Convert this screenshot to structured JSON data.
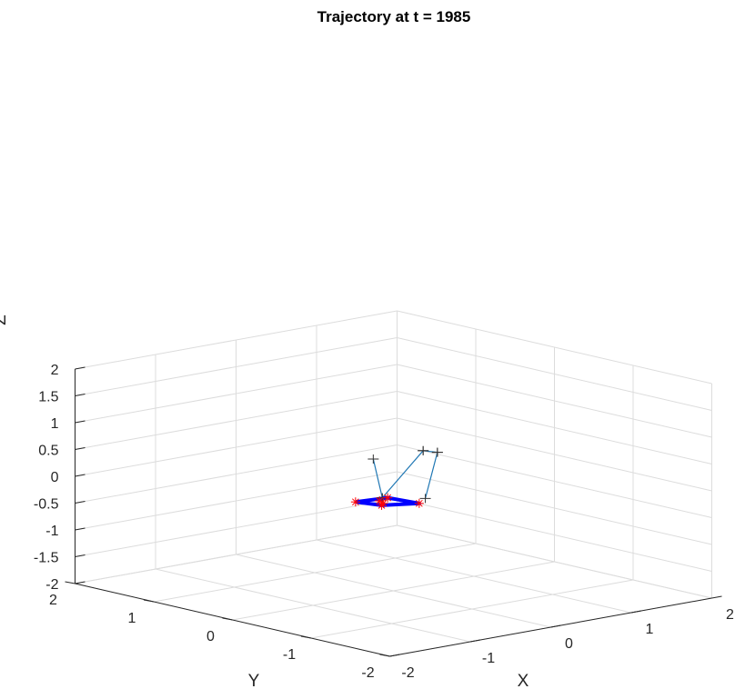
{
  "chart_data": {
    "type": "line",
    "projection": "3d",
    "title": "Trajectory at t = 1985",
    "xlabel": "X",
    "ylabel": "Y",
    "zlabel": "Z",
    "xlim": [
      -2,
      2
    ],
    "ylim": [
      -2,
      2
    ],
    "zlim": [
      -2,
      2
    ],
    "xticks": [
      "-2",
      "-1",
      "0",
      "1",
      "2"
    ],
    "yticks": [
      "-2",
      "-1",
      "0",
      "1",
      "2"
    ],
    "zticks": [
      "-2",
      "-1.5",
      "-1",
      "-0.5",
      "0",
      "0.5",
      "1",
      "1.5",
      "2"
    ],
    "grid": true,
    "colors": {
      "links": "#1f77b4",
      "frame": "#0000ff",
      "markers": "#ff0000",
      "grid": "#dcdcdc",
      "axes": "#262626"
    },
    "series": [
      {
        "role": "link",
        "points": [
          [
            0.6,
            0.87,
            0.0
          ],
          [
            0.82,
            0.98,
            -0.82
          ]
        ]
      },
      {
        "role": "link",
        "points": [
          [
            1.2,
            0.85,
            0.0
          ],
          [
            0.82,
            0.98,
            -0.82
          ]
        ]
      },
      {
        "role": "link",
        "points": [
          [
            1.25,
            0.72,
            0.0
          ],
          [
            1.1,
            0.72,
            -0.82
          ]
        ]
      },
      {
        "role": "link",
        "points": [
          [
            1.2,
            0.85,
            0.0
          ],
          [
            1.25,
            0.72,
            0.0
          ]
        ]
      },
      {
        "role": "frame",
        "points": [
          [
            0.8,
            1.3,
            -1.0
          ],
          [
            0.88,
            1.05,
            -1.0
          ],
          [
            1.2,
            0.9,
            -1.0
          ],
          [
            1.15,
            1.25,
            -1.0
          ],
          [
            0.8,
            1.3,
            -1.0
          ]
        ]
      }
    ],
    "markers": [
      [
        0.8,
        1.3,
        -1.0
      ],
      [
        0.88,
        1.05,
        -1.0
      ],
      [
        1.2,
        0.9,
        -1.0
      ],
      [
        1.15,
        1.25,
        -1.0
      ],
      [
        1.0,
        1.2,
        -1.0
      ],
      [
        0.95,
        1.1,
        -1.0
      ]
    ]
  }
}
